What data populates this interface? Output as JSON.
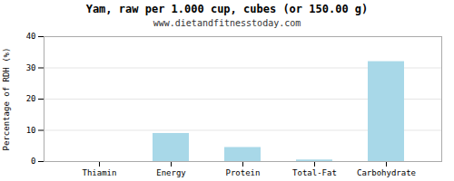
{
  "chart_data": {
    "type": "bar",
    "title": "Yam, raw per 1.000 cup, cubes (or 150.00 g)",
    "subtitle": "www.dietandfitnesstoday.com",
    "categories": [
      "Thiamin",
      "Energy",
      "Protein",
      "Total-Fat",
      "Carbohydrate"
    ],
    "values": [
      0.0,
      9.0,
      4.5,
      0.5,
      32.0
    ],
    "color": "#a8d8e8",
    "ylabel": "Percentage of RDH (%)",
    "ylim": [
      0,
      40
    ],
    "yticks": [
      0,
      10,
      20,
      30,
      40
    ],
    "grid": true
  }
}
